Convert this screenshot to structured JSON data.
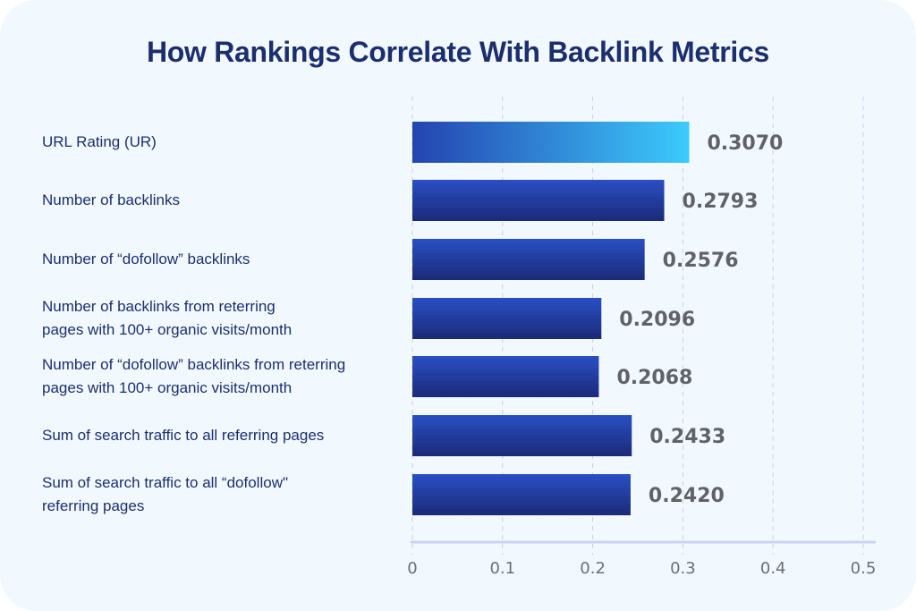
{
  "chart_data": {
    "type": "bar",
    "orientation": "horizontal",
    "title": "How Rankings Correlate With Backlink Metrics",
    "categories": [
      "URL Rating (UR)",
      "Number of backlinks",
      "Number of “dofollow” backlinks",
      "Number  of backlinks from reterring\npages with 100+ organic visits/month",
      "Number of “dofollow” backlinks from reterring\npages with 100+ organic visits/month",
      "Sum of search traffic to all referring pages",
      "Sum of search traffic to all “dofollow\"\nreferring pages"
    ],
    "values": [
      0.307,
      0.2793,
      0.2576,
      0.2096,
      0.2068,
      0.2433,
      0.242
    ],
    "value_labels": [
      "0.3070",
      "0.2793",
      "0.2576",
      "0.2096",
      "0.2068",
      "0.2433",
      "0.2420"
    ],
    "xlim": [
      0,
      0.5
    ],
    "xticks": [
      0,
      0.1,
      0.2,
      0.3,
      0.4,
      0.5
    ],
    "xtick_labels": [
      "0",
      "0.1",
      "0.2",
      "0.3",
      "0.4",
      "0.5"
    ],
    "xlabel": "",
    "ylabel": "",
    "grid": "vertical dashed",
    "highlight_index": 0,
    "colors": {
      "bar_top": "#2a4fc4",
      "bar_bottom": "#1b2a78",
      "highlight_start": "#2444b0",
      "highlight_end": "#3ccbfc",
      "grid": "#c5cfe8",
      "axis": "#c9d3f0",
      "title": "#1c2e6e",
      "label": "#1c2e6e",
      "value": "#5f6368",
      "background": "#f1f9fe"
    }
  }
}
